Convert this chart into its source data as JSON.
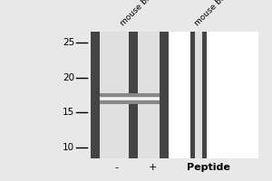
{
  "bg_color": "#e8e8e8",
  "title": "",
  "mw_markers": [
    25,
    20,
    15,
    10
  ],
  "lane_labels": [
    "mouse brain",
    "mouse brain"
  ],
  "bottom_labels": [
    "-",
    "+",
    "Peptide"
  ],
  "lane_color_dark": "#444444",
  "lane_color_mid": "#888888",
  "lane_color_light": "#e0e0e0",
  "band_gray": "#999999",
  "band_white": "#f0f0f0",
  "font_size_mw": 7.5,
  "font_size_label": 6.5,
  "font_size_bottom": 8,
  "fig_width": 3.0,
  "fig_height": 2.0,
  "dpi": 100
}
